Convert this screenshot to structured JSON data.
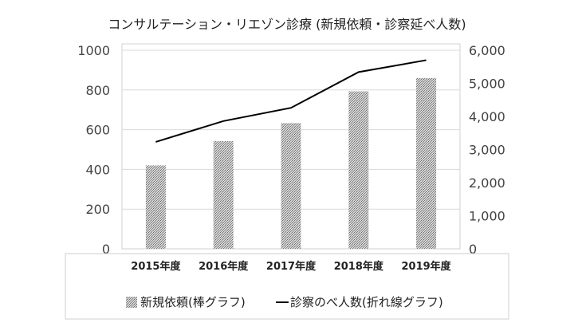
{
  "chart_data": {
    "type": "bar",
    "title": "コンサルテーション・リエゾン診療 (新規依頼・診察延べ人数)",
    "categories": [
      "2015年度",
      "2016年度",
      "2017年度",
      "2018年度",
      "2019年度"
    ],
    "series": [
      {
        "name": "新規依頼(棒グラフ)",
        "type": "bar",
        "axis": "left",
        "values": [
          420,
          542,
          633,
          793,
          860
        ],
        "color": "#a9a9a9"
      },
      {
        "name": "診察のべ人数(折れ線グラフ)",
        "type": "line",
        "axis": "right",
        "values": [
          3230,
          3860,
          4260,
          5340,
          5700
        ],
        "color": "#000000"
      }
    ],
    "y_left": {
      "min": 0,
      "max": 1000,
      "step": 200,
      "ticks": [
        "0",
        "200",
        "400",
        "600",
        "800",
        "1000"
      ]
    },
    "y_right": {
      "min": 0,
      "max": 6000,
      "step": 1000,
      "ticks": [
        "0",
        "1,000",
        "2,000",
        "3,000",
        "4,000",
        "5,000",
        "6,000"
      ]
    },
    "grid": true,
    "legend_position": "bottom"
  }
}
